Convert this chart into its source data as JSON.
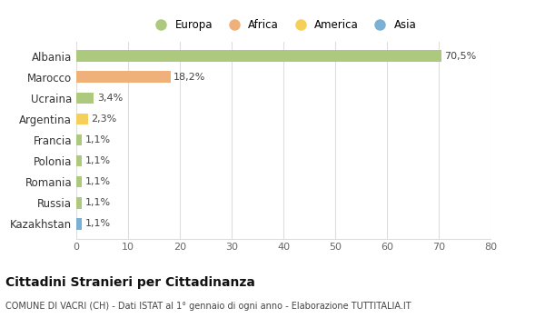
{
  "categories": [
    "Albania",
    "Marocco",
    "Ucraina",
    "Argentina",
    "Francia",
    "Polonia",
    "Romania",
    "Russia",
    "Kazakhstan"
  ],
  "values": [
    70.5,
    18.2,
    3.4,
    2.3,
    1.1,
    1.1,
    1.1,
    1.1,
    1.1
  ],
  "labels": [
    "70,5%",
    "18,2%",
    "3,4%",
    "2,3%",
    "1,1%",
    "1,1%",
    "1,1%",
    "1,1%",
    "1,1%"
  ],
  "bar_colors": [
    "#adc97e",
    "#f0b07a",
    "#adc97e",
    "#f5cf5a",
    "#adc97e",
    "#adc97e",
    "#adc97e",
    "#adc97e",
    "#7ab0d4"
  ],
  "legend_labels": [
    "Europa",
    "Africa",
    "America",
    "Asia"
  ],
  "legend_colors": [
    "#adc97e",
    "#f0b07a",
    "#f5cf5a",
    "#7ab0d4"
  ],
  "xlim": [
    0,
    80
  ],
  "xticks": [
    0,
    10,
    20,
    30,
    40,
    50,
    60,
    70,
    80
  ],
  "title": "Cittadini Stranieri per Cittadinanza",
  "subtitle": "COMUNE DI VACRI (CH) - Dati ISTAT al 1° gennaio di ogni anno - Elaborazione TUTTITALIA.IT",
  "background_color": "#ffffff",
  "grid_color": "#dddddd"
}
